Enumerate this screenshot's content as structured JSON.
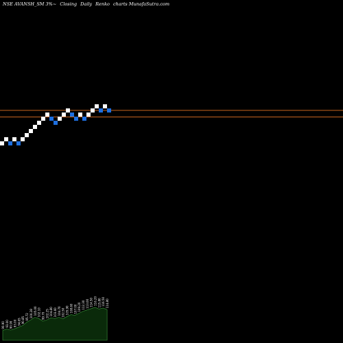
{
  "header": {
    "symbol": "NSE AVANSH_SM 3%~",
    "series_type": "Closing",
    "frequency": "Daily",
    "chart_kind": "Renko",
    "credit": "charts MunafaSutra.com"
  },
  "colors": {
    "background": "#000000",
    "up_brick": "#ffffff",
    "down_brick": "#1e6fe0",
    "reference_line": "#c8641e",
    "volume_fill": "#0a2a0a",
    "volume_outline": "#3c9a3c",
    "volume_label": "#ffffff"
  },
  "chart_data": {
    "type": "renko",
    "bricks": [
      {
        "level": 0,
        "dir": "up"
      },
      {
        "level": 1,
        "dir": "up"
      },
      {
        "level": 0,
        "dir": "down"
      },
      {
        "level": 1,
        "dir": "up"
      },
      {
        "level": 0,
        "dir": "down"
      },
      {
        "level": 1,
        "dir": "up"
      },
      {
        "level": 2,
        "dir": "up"
      },
      {
        "level": 3,
        "dir": "up"
      },
      {
        "level": 4,
        "dir": "up"
      },
      {
        "level": 5,
        "dir": "up"
      },
      {
        "level": 6,
        "dir": "up"
      },
      {
        "level": 7,
        "dir": "up"
      },
      {
        "level": 6,
        "dir": "down"
      },
      {
        "level": 5,
        "dir": "down"
      },
      {
        "level": 6,
        "dir": "up"
      },
      {
        "level": 7,
        "dir": "up"
      },
      {
        "level": 8,
        "dir": "up"
      },
      {
        "level": 7,
        "dir": "down"
      },
      {
        "level": 6,
        "dir": "down"
      },
      {
        "level": 7,
        "dir": "up"
      },
      {
        "level": 6,
        "dir": "down"
      },
      {
        "level": 7,
        "dir": "up"
      },
      {
        "level": 8,
        "dir": "up"
      },
      {
        "level": 9,
        "dir": "up"
      },
      {
        "level": 8,
        "dir": "down"
      },
      {
        "level": 9,
        "dir": "up"
      },
      {
        "level": 8,
        "dir": "down"
      }
    ],
    "reference_lines": [
      8.6,
      7.0
    ],
    "volume_labels": [
      "90.90",
      "93.00",
      "90.90",
      "93.00",
      "94.65",
      "90.85",
      "95.72",
      "100.28",
      "105.00",
      "102.10",
      "99.70",
      "102.25",
      "104.80",
      "103.60",
      "104.70",
      "102.50",
      "105.90",
      "108.60",
      "107.00",
      "109.20",
      "112.30",
      "113.00",
      "114.50",
      "116.20",
      "115.80",
      "116.50",
      "114.80"
    ],
    "volumes": [
      0.3,
      0.34,
      0.31,
      0.35,
      0.4,
      0.45,
      0.55,
      0.62,
      0.7,
      0.66,
      0.58,
      0.62,
      0.68,
      0.66,
      0.7,
      0.65,
      0.72,
      0.78,
      0.76,
      0.82,
      0.88,
      0.92,
      0.96,
      1.0,
      0.95,
      0.98,
      0.93
    ]
  }
}
